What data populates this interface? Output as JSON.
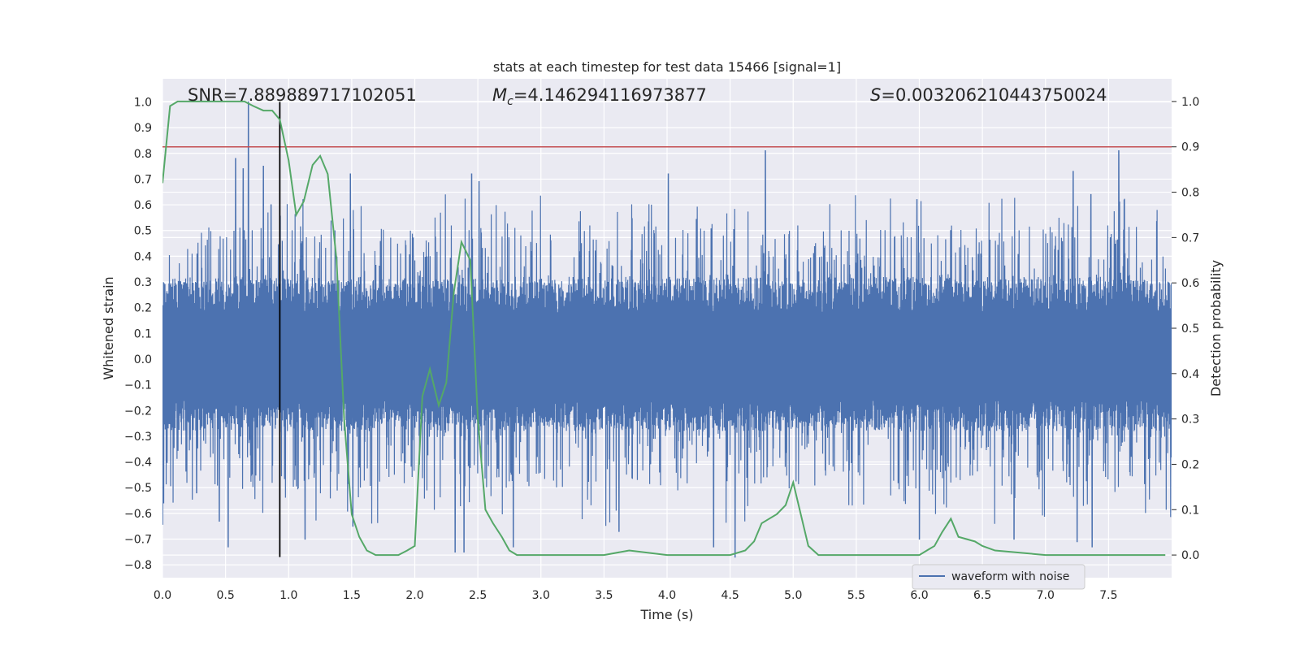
{
  "chart_data": {
    "type": "line",
    "title": "stats at each timestep for test data 15466 [signal=1]",
    "xlabel": "Time (s)",
    "ylabel": "Whitened strain",
    "y2label": "Detection probability",
    "xlim": [
      0.0,
      8.0
    ],
    "ylim": [
      -0.85,
      1.09
    ],
    "y2lim": [
      -0.05,
      1.05
    ],
    "xticks": [
      0.0,
      0.5,
      1.0,
      1.5,
      2.0,
      2.5,
      3.0,
      3.5,
      4.0,
      4.5,
      5.0,
      5.5,
      6.0,
      6.5,
      7.0,
      7.5
    ],
    "xtick_labels": [
      "0.0",
      "0.5",
      "1.0",
      "1.5",
      "2.0",
      "2.5",
      "3.0",
      "3.5",
      "4.0",
      "4.5",
      "5.0",
      "5.5",
      "6.0",
      "6.5",
      "7.0",
      "7.5"
    ],
    "yticks": [
      -0.8,
      -0.7,
      -0.6,
      -0.5,
      -0.4,
      -0.3,
      -0.2,
      -0.1,
      0.0,
      0.1,
      0.2,
      0.3,
      0.4,
      0.5,
      0.6,
      0.7,
      0.8,
      0.9,
      1.0
    ],
    "ytick_labels": [
      "−0.8",
      "−0.7",
      "−0.6",
      "−0.5",
      "−0.4",
      "−0.3",
      "−0.2",
      "−0.1",
      "0.0",
      "0.1",
      "0.2",
      "0.3",
      "0.4",
      "0.5",
      "0.6",
      "0.7",
      "0.8",
      "0.9",
      "1.0"
    ],
    "y2ticks": [
      0.0,
      0.1,
      0.2,
      0.3,
      0.4,
      0.5,
      0.6,
      0.7,
      0.8,
      0.9,
      1.0
    ],
    "y2tick_labels": [
      "0.0",
      "0.1",
      "0.2",
      "0.3",
      "0.4",
      "0.5",
      "0.6",
      "0.7",
      "0.8",
      "0.9",
      "1.0"
    ],
    "grid": true,
    "legend": {
      "position": "lower-right",
      "entries": [
        "waveform with noise"
      ]
    },
    "annotations": {
      "snr": "SNR=7.889889717102051",
      "mc_symbol": "M",
      "mc_sub": "c",
      "mc_value": "=4.146294116973877",
      "s_symbol": "S",
      "s_value": "=0.003206210443750024"
    },
    "threshold_y2": 0.9,
    "vline_x": 0.93,
    "vline_y_range": [
      -0.77,
      1.0
    ],
    "waveform": {
      "name": "waveform with noise",
      "color": "#4c72b0",
      "x_range": [
        0.0,
        8.0
      ],
      "samples": 4096,
      "band": [
        -0.25,
        0.3
      ],
      "spikes": [
        {
          "x": 0.68,
          "y": 1.0
        },
        {
          "x": 0.8,
          "y": 0.75
        },
        {
          "x": 0.64,
          "y": 0.74
        },
        {
          "x": 0.58,
          "y": 0.78
        },
        {
          "x": 1.49,
          "y": 0.72
        },
        {
          "x": 2.45,
          "y": 0.72
        },
        {
          "x": 4.01,
          "y": 0.72
        },
        {
          "x": 4.78,
          "y": 0.81
        },
        {
          "x": 6.0,
          "y": 0.7
        },
        {
          "x": 7.58,
          "y": 0.81
        },
        {
          "x": 7.22,
          "y": 0.73
        },
        {
          "x": 0.52,
          "y": -0.73
        },
        {
          "x": 1.13,
          "y": -0.7
        },
        {
          "x": 2.32,
          "y": -0.75
        },
        {
          "x": 2.39,
          "y": -0.75
        },
        {
          "x": 4.54,
          "y": -0.77
        },
        {
          "x": 1.51,
          "y": -0.65
        },
        {
          "x": 0.27,
          "y": -0.52
        },
        {
          "x": 0.45,
          "y": -0.63
        },
        {
          "x": 2.78,
          "y": -0.73
        },
        {
          "x": 3.62,
          "y": -0.67
        },
        {
          "x": 4.37,
          "y": -0.73
        },
        {
          "x": 7.37,
          "y": -0.73
        },
        {
          "x": 7.25,
          "y": -0.71
        },
        {
          "x": 6.75,
          "y": -0.7
        },
        {
          "x": 6.0,
          "y": -0.7
        },
        {
          "x": 5.98,
          "y": 0.62
        },
        {
          "x": 7.36,
          "y": 0.64
        },
        {
          "x": 2.51,
          "y": 0.69
        },
        {
          "x": 0.86,
          "y": 0.6
        }
      ]
    },
    "probability": {
      "color": "#55a868",
      "x": [
        0.0,
        0.06,
        0.12,
        0.25,
        0.4,
        0.55,
        0.65,
        0.72,
        0.8,
        0.87,
        0.93,
        1.0,
        1.06,
        1.12,
        1.19,
        1.25,
        1.31,
        1.38,
        1.44,
        1.5,
        1.56,
        1.62,
        1.69,
        1.75,
        1.81,
        1.87,
        1.94,
        2.0,
        2.06,
        2.12,
        2.19,
        2.25,
        2.31,
        2.37,
        2.44,
        2.5,
        2.56,
        2.62,
        2.69,
        2.75,
        2.81,
        2.87,
        3.0,
        3.2,
        3.5,
        3.7,
        4.0,
        4.25,
        4.5,
        4.62,
        4.69,
        4.75,
        4.81,
        4.87,
        4.94,
        5.0,
        5.06,
        5.12,
        5.2,
        5.5,
        6.0,
        6.12,
        6.18,
        6.25,
        6.31,
        6.44,
        6.5,
        6.6,
        7.0,
        7.5,
        7.95
      ],
      "y": [
        0.82,
        0.99,
        1.0,
        1.0,
        1.0,
        1.0,
        1.0,
        0.99,
        0.98,
        0.98,
        0.96,
        0.87,
        0.75,
        0.78,
        0.86,
        0.88,
        0.84,
        0.65,
        0.3,
        0.09,
        0.04,
        0.01,
        0.0,
        0.0,
        0.0,
        0.0,
        0.01,
        0.02,
        0.35,
        0.41,
        0.33,
        0.38,
        0.58,
        0.69,
        0.65,
        0.3,
        0.1,
        0.07,
        0.04,
        0.01,
        0.0,
        0.0,
        0.0,
        0.0,
        0.0,
        0.01,
        0.0,
        0.0,
        0.0,
        0.01,
        0.03,
        0.07,
        0.08,
        0.09,
        0.11,
        0.16,
        0.09,
        0.02,
        0.0,
        0.0,
        0.0,
        0.02,
        0.05,
        0.08,
        0.04,
        0.03,
        0.02,
        0.01,
        0.0,
        0.0,
        0.0
      ]
    }
  }
}
